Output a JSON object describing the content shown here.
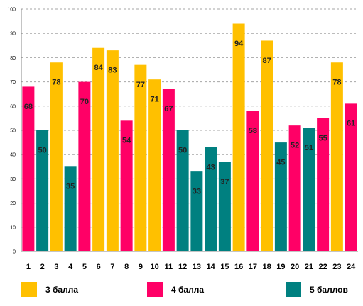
{
  "chart_data": {
    "type": "bar",
    "title": "",
    "xlabel": "",
    "ylabel": "",
    "ylim": [
      0,
      100
    ],
    "yticks": [
      0,
      10,
      20,
      30,
      40,
      50,
      60,
      70,
      80,
      90,
      100
    ],
    "grid": true,
    "categories": [
      "1",
      "2",
      "3",
      "4",
      "5",
      "6",
      "7",
      "8",
      "9",
      "10",
      "11",
      "12",
      "13",
      "14",
      "15",
      "16",
      "17",
      "18",
      "19",
      "20",
      "21",
      "22",
      "23",
      "24"
    ],
    "values": [
      68,
      50,
      78,
      35,
      70,
      84,
      83,
      54,
      77,
      71,
      67,
      50,
      33,
      43,
      37,
      94,
      58,
      87,
      45,
      52,
      51,
      55,
      78,
      61
    ],
    "value_labels": [
      "68",
      "50",
      "78",
      "35",
      "70",
      "84",
      "83",
      "54",
      "77",
      "71",
      "67",
      "50",
      "33",
      "43",
      "37",
      "94",
      "58",
      "87",
      "45",
      "52",
      "51",
      "55",
      "78",
      "61"
    ],
    "bar_groups": [
      1,
      2,
      0,
      2,
      1,
      0,
      0,
      1,
      0,
      0,
      1,
      2,
      2,
      2,
      2,
      0,
      1,
      0,
      2,
      1,
      2,
      1,
      0,
      1
    ],
    "legend": [
      {
        "name": "3 балла",
        "color": "#FFC000"
      },
      {
        "name": "4 балла",
        "color": "#FF0066"
      },
      {
        "name": "5 баллов",
        "color": "#008080"
      }
    ],
    "legend_position": "bottom"
  }
}
